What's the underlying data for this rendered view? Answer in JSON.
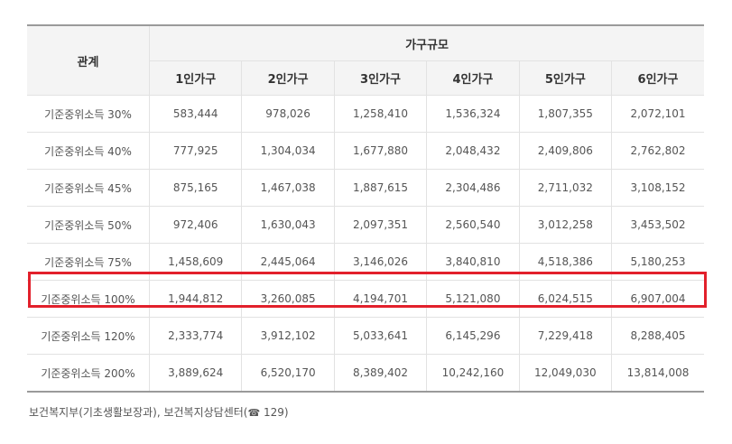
{
  "table": {
    "rel_header": "관계",
    "group_header": "가구규모",
    "columns": [
      "1인가구",
      "2인가구",
      "3인가구",
      "4인가구",
      "5인가구",
      "6인가구"
    ],
    "rows": [
      {
        "label": "기준중위소득 30%",
        "values": [
          "583,444",
          "978,026",
          "1,258,410",
          "1,536,324",
          "1,807,355",
          "2,072,101"
        ]
      },
      {
        "label": "기준중위소득 40%",
        "values": [
          "777,925",
          "1,304,034",
          "1,677,880",
          "2,048,432",
          "2,409,806",
          "2,762,802"
        ]
      },
      {
        "label": "기준중위소득 45%",
        "values": [
          "875,165",
          "1,467,038",
          "1,887,615",
          "2,304,486",
          "2,711,032",
          "3,108,152"
        ]
      },
      {
        "label": "기준중위소득 50%",
        "values": [
          "972,406",
          "1,630,043",
          "2,097,351",
          "2,560,540",
          "3,012,258",
          "3,453,502"
        ]
      },
      {
        "label": "기준중위소득 75%",
        "values": [
          "1,458,609",
          "2,445,064",
          "3,146,026",
          "3,840,810",
          "4,518,386",
          "5,180,253"
        ]
      },
      {
        "label": "기준중위소득 100%",
        "values": [
          "1,944,812",
          "3,260,085",
          "4,194,701",
          "5,121,080",
          "6,024,515",
          "6,907,004"
        ]
      },
      {
        "label": "기준중위소득 120%",
        "values": [
          "2,333,774",
          "3,912,102",
          "5,033,641",
          "6,145,296",
          "7,229,418",
          "8,288,405"
        ]
      },
      {
        "label": "기준중위소득 200%",
        "values": [
          "3,889,624",
          "6,520,170",
          "8,389,402",
          "10,242,160",
          "12,049,030",
          "13,814,008"
        ]
      }
    ]
  },
  "footer": {
    "source_text": "보건복지부(기초생활보장과), 보건복지상담센터(",
    "phone_icon": "phone-icon",
    "phone_number": " 129)"
  },
  "colors": {
    "highlight": "#e2202b",
    "header_bg": "#f4f4f4"
  }
}
